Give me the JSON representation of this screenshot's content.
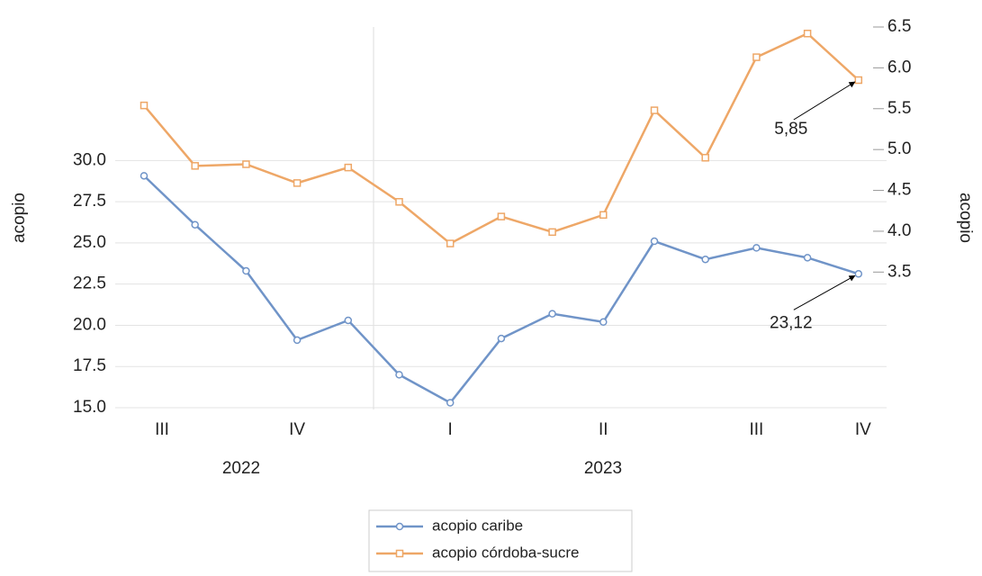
{
  "chart_data": {
    "type": "line",
    "categories": [
      "III",
      null,
      null,
      "IV",
      null,
      null,
      "I",
      null,
      null,
      "II",
      null,
      null,
      "III",
      null,
      "IV"
    ],
    "year_labels": [
      "2022",
      "2023"
    ],
    "ylabel": "acopio",
    "y2label": "acopio",
    "series": [
      {
        "name": "acopio caribe",
        "color": "#7094c8",
        "marker": "circle",
        "values": [
          29.07,
          26.1,
          23.3,
          19.1,
          20.3,
          17.0,
          15.3,
          19.2,
          20.7,
          20.2,
          25.1,
          24.0,
          24.7,
          24.1,
          23.12
        ],
        "value_labels": [
          null,
          null,
          null,
          null,
          null,
          null,
          null,
          null,
          null,
          null,
          null,
          null,
          null,
          null,
          "23,12"
        ]
      },
      {
        "name": "acopio córdoba-sucre",
        "color": "#eea767",
        "marker": "square",
        "axis": "y2",
        "values": [
          5.54,
          4.8,
          4.82,
          4.59,
          4.78,
          4.36,
          3.85,
          4.18,
          3.99,
          4.2,
          5.48,
          4.9,
          6.13,
          6.42,
          5.85
        ],
        "value_labels": [
          null,
          null,
          null,
          null,
          null,
          null,
          null,
          null,
          null,
          null,
          null,
          null,
          null,
          null,
          "5,85"
        ]
      }
    ],
    "ylim": [
      15,
      38.1
    ],
    "yticks": [
      {
        "value": 15,
        "label": "15.0"
      },
      17.5,
      {
        "value": 20,
        "label": "20.0"
      },
      22.5,
      {
        "value": 25,
        "label": "25.0"
      },
      27.5,
      {
        "value": 30,
        "label": "30.0"
      }
    ],
    "y2lim": [
      1.84,
      6.5
    ],
    "y2ticks": [
      3.5,
      {
        "value": 4,
        "label": "4.0"
      },
      4.5,
      {
        "value": 5,
        "label": "5.0"
      },
      5.5,
      {
        "value": 6,
        "label": "6.0"
      },
      6.5
    ],
    "grid": true,
    "legend": "bottom"
  }
}
